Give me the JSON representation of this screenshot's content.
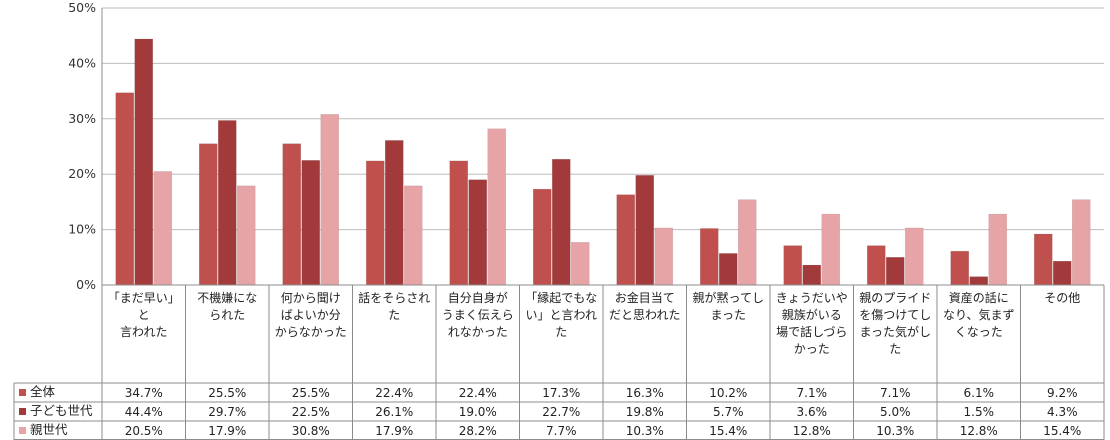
{
  "chart_data": {
    "type": "bar",
    "ylim": [
      0,
      50
    ],
    "yticks": [
      "0%",
      "10%",
      "20%",
      "30%",
      "40%",
      "50%"
    ],
    "categories": [
      "「まだ早い」と\n言われた",
      "不機嫌にな\nられた",
      "何から聞け\nばよいか分\nからなかった",
      "話をそらされ\nた",
      "自分自身が\nうまく伝えら\nれなかった",
      "「縁起でもな\nい」と言われ\nた",
      "お金目当て\nだと思われた",
      "親が黙ってし\nまった",
      "きょうだいや\n親族がいる\n場で話しづら\nかった",
      "親のプライド\nを傷つけてし\nまった気がし\nた",
      "資産の話に\nなり、気まず\nくなった",
      "その他"
    ],
    "series": [
      {
        "name": "全体",
        "color": "#c0504d",
        "values": [
          34.7,
          25.5,
          25.5,
          22.4,
          22.4,
          17.3,
          16.3,
          10.2,
          7.1,
          7.1,
          6.1,
          9.2
        ],
        "labels": [
          "34.7%",
          "25.5%",
          "25.5%",
          "22.4%",
          "22.4%",
          "17.3%",
          "16.3%",
          "10.2%",
          "7.1%",
          "7.1%",
          "6.1%",
          "9.2%"
        ]
      },
      {
        "name": "子ども世代",
        "color": "#a23a3c",
        "values": [
          44.4,
          29.7,
          22.5,
          26.1,
          19.0,
          22.7,
          19.8,
          5.7,
          3.6,
          5.0,
          1.5,
          4.3
        ],
        "labels": [
          "44.4%",
          "29.7%",
          "22.5%",
          "26.1%",
          "19.0%",
          "22.7%",
          "19.8%",
          "5.7%",
          "3.6%",
          "5.0%",
          "1.5%",
          "4.3%"
        ]
      },
      {
        "name": "親世代",
        "color": "#e6a4a7",
        "values": [
          20.5,
          17.9,
          30.8,
          17.9,
          28.2,
          7.7,
          10.3,
          15.4,
          12.8,
          10.3,
          12.8,
          15.4
        ],
        "labels": [
          "20.5%",
          "17.9%",
          "30.8%",
          "17.9%",
          "28.2%",
          "7.7%",
          "10.3%",
          "15.4%",
          "12.8%",
          "10.3%",
          "12.8%",
          "15.4%"
        ]
      }
    ],
    "grid": true,
    "legend": "data-table"
  }
}
